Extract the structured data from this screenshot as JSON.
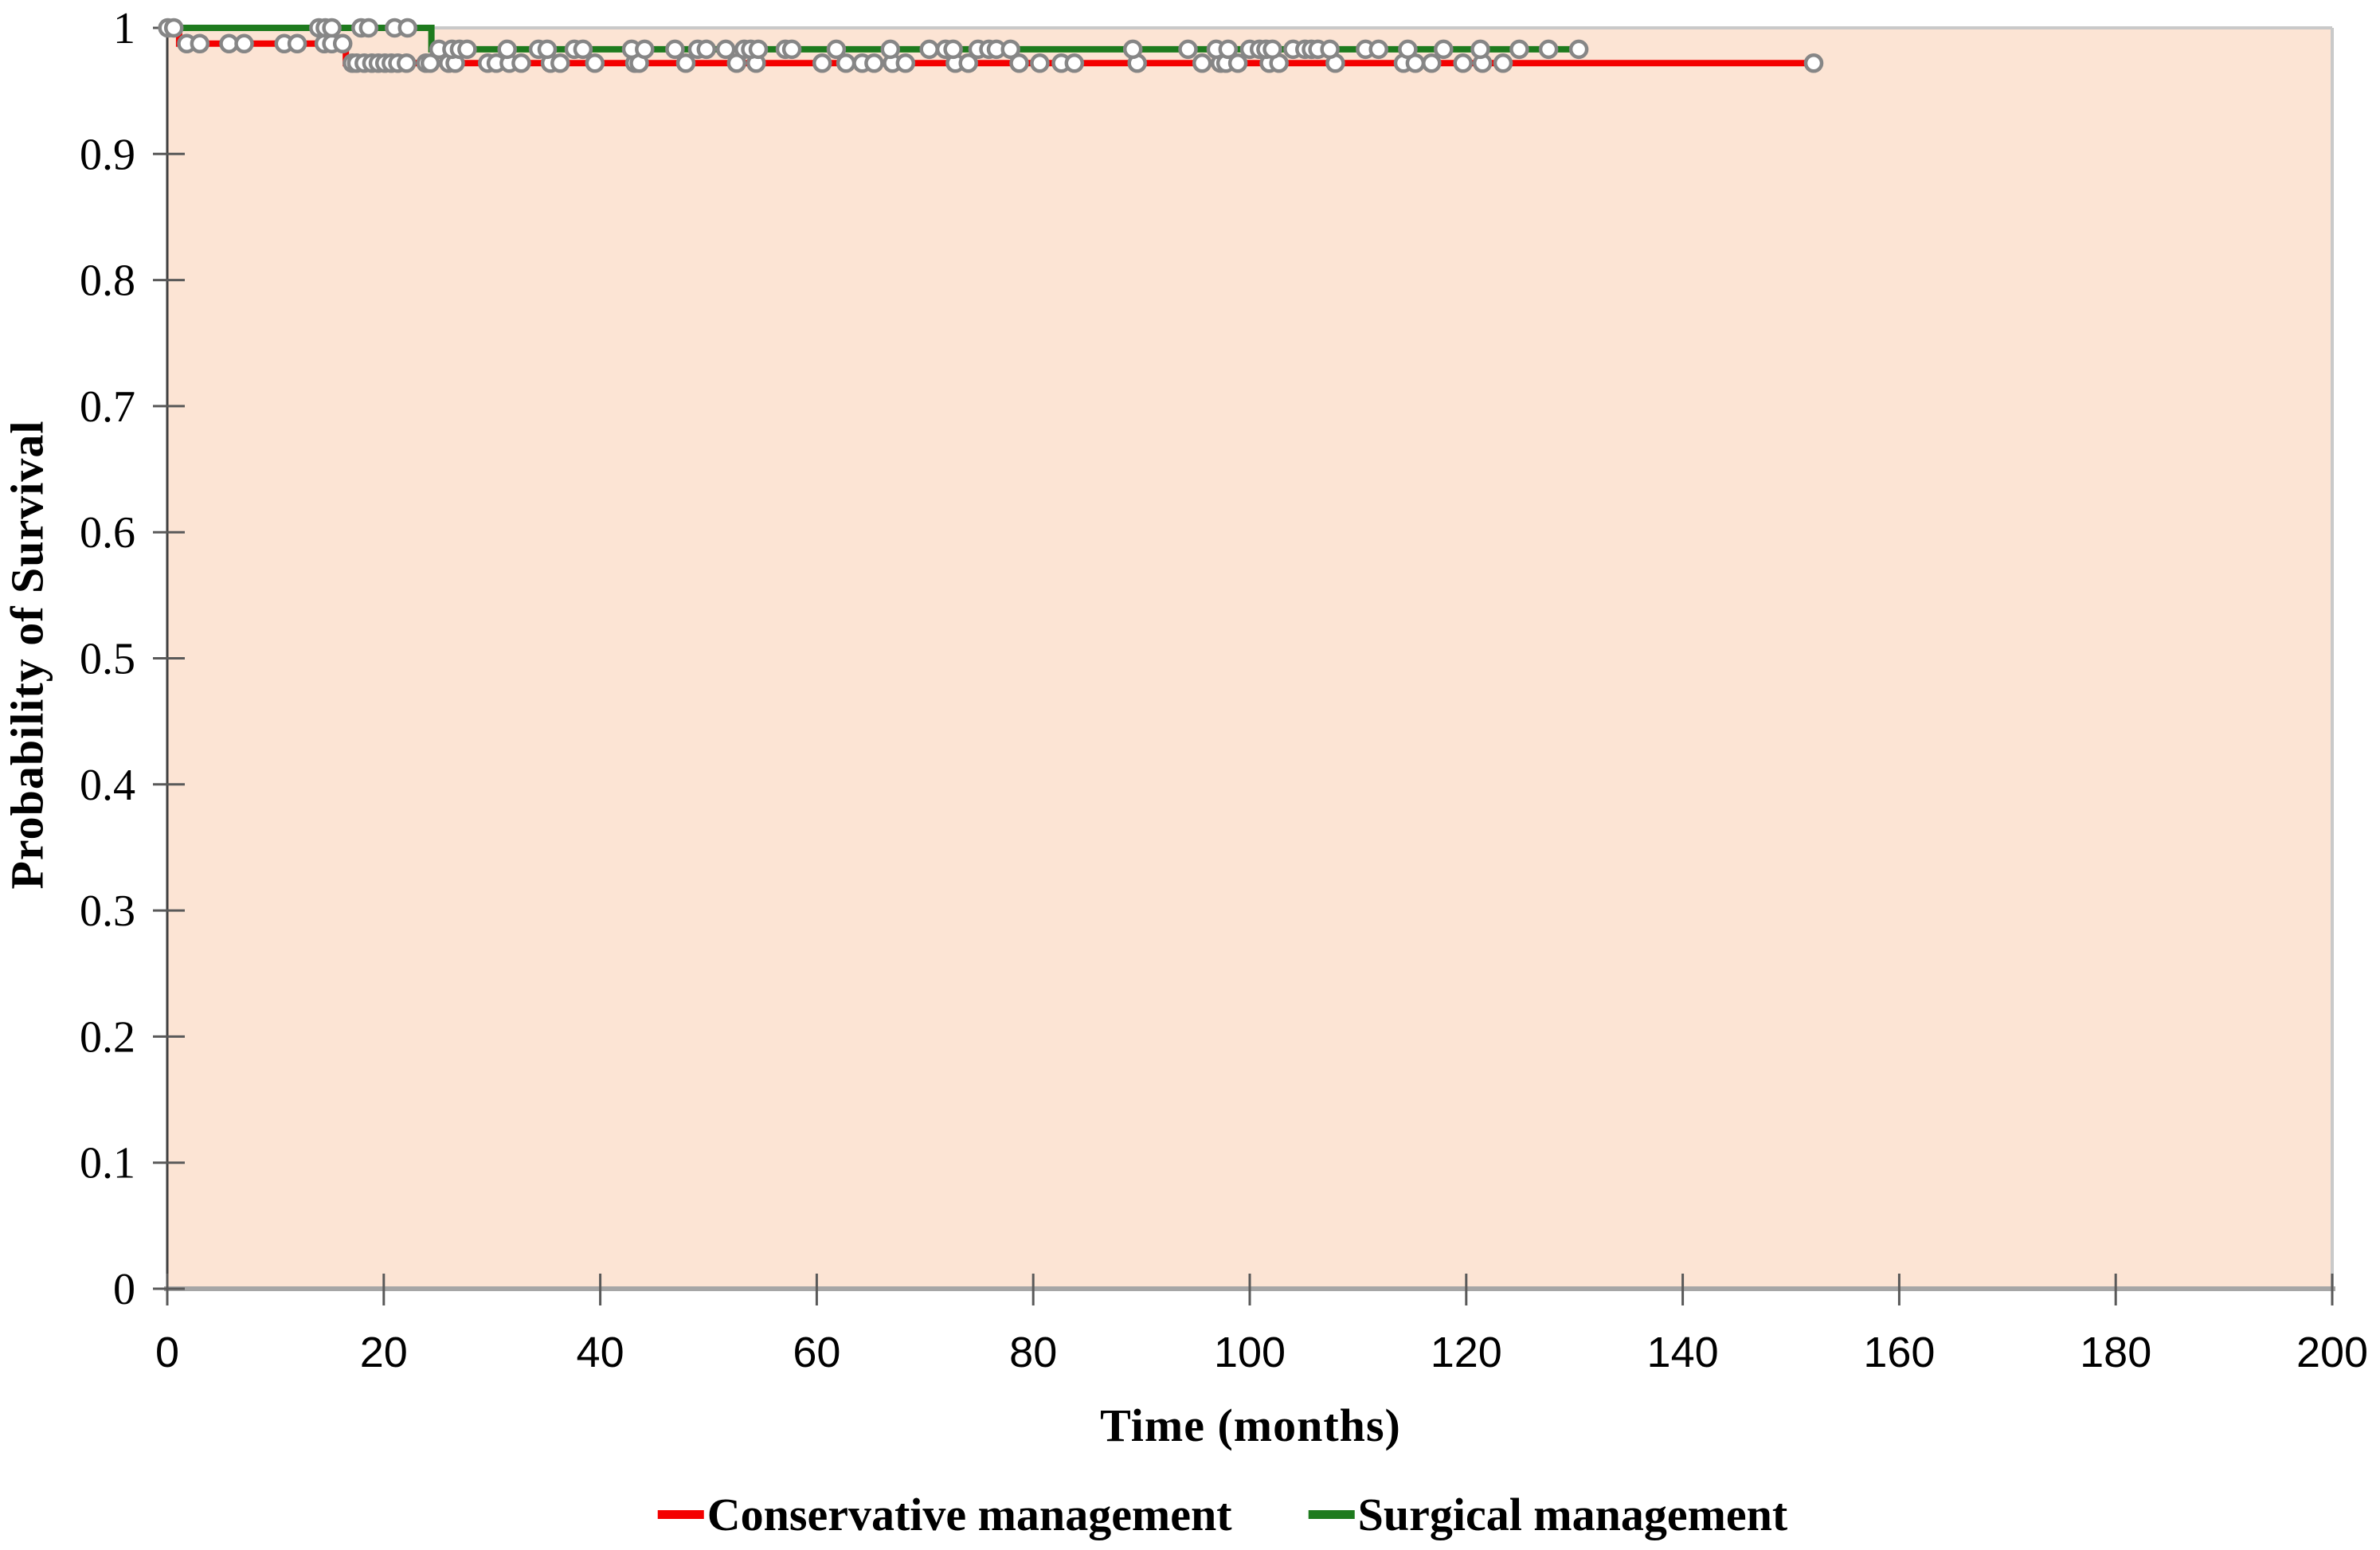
{
  "figure": {
    "background": "#ffffff",
    "plot_background": "#fce4d4",
    "border_color": "#c9c9c9",
    "baseline_color": "#a6a6a6",
    "yaxis_color": "#404040",
    "tick_color": "#595959",
    "text_color": "#000000"
  },
  "chart_data": {
    "type": "line",
    "subtype": "kaplan-meier-step-survival",
    "title": "",
    "xlabel": "Time (months)",
    "ylabel": "Probability of Survival",
    "xlim": [
      0,
      200
    ],
    "ylim": [
      0,
      1
    ],
    "grid": false,
    "legend_position": "bottom",
    "x_ticks": [
      0,
      20,
      40,
      60,
      80,
      100,
      120,
      140,
      160,
      180,
      200
    ],
    "x_tick_labels": [
      "0",
      "20",
      "40",
      "60",
      "80",
      "100",
      "120",
      "140",
      "160",
      "180",
      "200"
    ],
    "y_ticks": [
      0,
      0.1,
      0.2,
      0.3,
      0.4,
      0.5,
      0.6,
      0.7,
      0.8,
      0.9,
      1
    ],
    "y_tick_labels": [
      "0",
      "0.1",
      "0.2",
      "0.3",
      "0.4",
      "0.5",
      "0.6",
      "0.7",
      "0.8",
      "0.9",
      "1"
    ],
    "censor_marker": {
      "shape": "circle",
      "fill": "#ffffff",
      "stroke": "#868686"
    },
    "series": [
      {
        "name": "Conservative management",
        "color": "#f40000",
        "steps": [
          [
            0,
            1.0
          ],
          [
            1.1,
            1.0
          ],
          [
            1.1,
            0.9875
          ],
          [
            16.5,
            0.9875
          ],
          [
            16.5,
            0.972
          ],
          [
            152.1,
            0.972
          ]
        ],
        "censored": [
          [
            1.8,
            0.9875
          ],
          [
            3.0,
            0.9875
          ],
          [
            5.7,
            0.9875
          ],
          [
            7.1,
            0.9875
          ],
          [
            10.8,
            0.9875
          ],
          [
            12.0,
            0.9875
          ],
          [
            14.5,
            0.9875
          ],
          [
            15.2,
            0.9875
          ],
          [
            16.2,
            0.9875
          ],
          [
            17.1,
            0.972
          ],
          [
            17.5,
            0.972
          ],
          [
            18.2,
            0.972
          ],
          [
            18.9,
            0.972
          ],
          [
            19.5,
            0.972
          ],
          [
            20.1,
            0.972
          ],
          [
            20.7,
            0.972
          ],
          [
            21.3,
            0.972
          ],
          [
            22.1,
            0.972
          ],
          [
            23.9,
            0.972
          ],
          [
            24.3,
            0.972
          ],
          [
            26.0,
            0.972
          ],
          [
            26.6,
            0.972
          ],
          [
            29.6,
            0.972
          ],
          [
            30.4,
            0.972
          ],
          [
            31.6,
            0.972
          ],
          [
            32.7,
            0.972
          ],
          [
            35.4,
            0.972
          ],
          [
            36.3,
            0.972
          ],
          [
            39.5,
            0.972
          ],
          [
            43.2,
            0.972
          ],
          [
            43.6,
            0.972
          ],
          [
            47.9,
            0.972
          ],
          [
            52.6,
            0.972
          ],
          [
            54.4,
            0.972
          ],
          [
            60.5,
            0.972
          ],
          [
            62.7,
            0.972
          ],
          [
            64.2,
            0.972
          ],
          [
            65.3,
            0.972
          ],
          [
            67.0,
            0.972
          ],
          [
            68.2,
            0.972
          ],
          [
            72.8,
            0.972
          ],
          [
            74.0,
            0.972
          ],
          [
            78.7,
            0.972
          ],
          [
            80.6,
            0.972
          ],
          [
            82.6,
            0.972
          ],
          [
            83.8,
            0.972
          ],
          [
            89.6,
            0.972
          ],
          [
            95.6,
            0.972
          ],
          [
            97.3,
            0.972
          ],
          [
            97.8,
            0.972
          ],
          [
            98.9,
            0.972
          ],
          [
            101.8,
            0.972
          ],
          [
            102.7,
            0.972
          ],
          [
            107.9,
            0.972
          ],
          [
            114.2,
            0.972
          ],
          [
            115.3,
            0.972
          ],
          [
            116.8,
            0.972
          ],
          [
            119.7,
            0.972
          ],
          [
            121.5,
            0.972
          ],
          [
            123.4,
            0.972
          ],
          [
            152.1,
            0.972
          ]
        ]
      },
      {
        "name": "Surgical management",
        "color": "#1e7b1e",
        "steps": [
          [
            0,
            1.0
          ],
          [
            24.4,
            1.0
          ],
          [
            24.4,
            0.983
          ],
          [
            130.6,
            0.983
          ]
        ],
        "censored": [
          [
            0.05,
            1.0
          ],
          [
            0.6,
            1.0
          ],
          [
            14.0,
            1.0
          ],
          [
            14.6,
            1.0
          ],
          [
            15.2,
            1.0
          ],
          [
            17.9,
            1.0
          ],
          [
            18.6,
            1.0
          ],
          [
            21.0,
            1.0
          ],
          [
            22.2,
            1.0
          ],
          [
            25.1,
            0.983
          ],
          [
            26.3,
            0.983
          ],
          [
            27.0,
            0.983
          ],
          [
            27.7,
            0.983
          ],
          [
            31.4,
            0.983
          ],
          [
            34.3,
            0.983
          ],
          [
            35.1,
            0.983
          ],
          [
            37.6,
            0.983
          ],
          [
            38.4,
            0.983
          ],
          [
            42.9,
            0.983
          ],
          [
            44.1,
            0.983
          ],
          [
            46.9,
            0.983
          ],
          [
            49.0,
            0.983
          ],
          [
            49.8,
            0.983
          ],
          [
            51.6,
            0.983
          ],
          [
            53.3,
            0.983
          ],
          [
            53.9,
            0.983
          ],
          [
            54.6,
            0.983
          ],
          [
            57.1,
            0.983
          ],
          [
            57.7,
            0.983
          ],
          [
            61.8,
            0.983
          ],
          [
            66.8,
            0.983
          ],
          [
            70.4,
            0.983
          ],
          [
            71.9,
            0.983
          ],
          [
            72.6,
            0.983
          ],
          [
            74.9,
            0.983
          ],
          [
            75.9,
            0.983
          ],
          [
            76.6,
            0.983
          ],
          [
            77.9,
            0.983
          ],
          [
            89.2,
            0.983
          ],
          [
            94.3,
            0.983
          ],
          [
            96.9,
            0.983
          ],
          [
            98.0,
            0.983
          ],
          [
            100.0,
            0.983
          ],
          [
            100.9,
            0.983
          ],
          [
            101.5,
            0.983
          ],
          [
            102.1,
            0.983
          ],
          [
            104.0,
            0.983
          ],
          [
            105.1,
            0.983
          ],
          [
            105.7,
            0.983
          ],
          [
            106.3,
            0.983
          ],
          [
            107.4,
            0.983
          ],
          [
            110.7,
            0.983
          ],
          [
            111.9,
            0.983
          ],
          [
            114.6,
            0.983
          ],
          [
            117.9,
            0.983
          ],
          [
            121.3,
            0.983
          ],
          [
            124.9,
            0.983
          ],
          [
            127.6,
            0.983
          ],
          [
            130.4,
            0.983
          ]
        ]
      }
    ]
  },
  "legend": {
    "items": [
      {
        "label": "Conservative management",
        "color": "#f40000"
      },
      {
        "label": "Surgical management",
        "color": "#1e7b1e"
      }
    ]
  }
}
